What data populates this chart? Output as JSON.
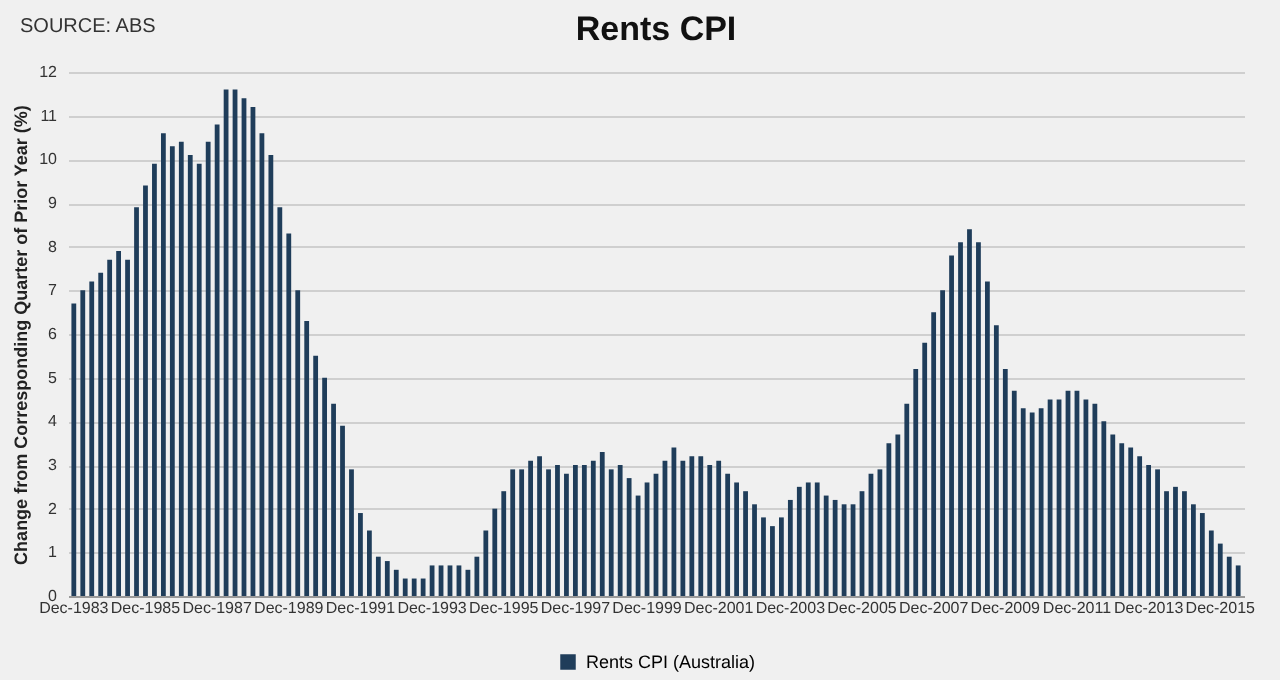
{
  "chart_data": {
    "type": "bar",
    "title": "Rents CPI",
    "ylabel": "Change from Corresponding Quarter of Prior Year (%)",
    "annotations": [
      "SOURCE: ABS"
    ],
    "categories": [
      "Dec-1983",
      null,
      null,
      null,
      null,
      null,
      null,
      null,
      "Dec-1985",
      null,
      null,
      null,
      null,
      null,
      null,
      null,
      "Dec-1987",
      null,
      null,
      null,
      null,
      null,
      null,
      null,
      "Dec-1989",
      null,
      null,
      null,
      null,
      null,
      null,
      null,
      "Dec-1991",
      null,
      null,
      null,
      null,
      null,
      null,
      null,
      "Dec-1993",
      null,
      null,
      null,
      null,
      null,
      null,
      null,
      "Dec-1995",
      null,
      null,
      null,
      null,
      null,
      null,
      null,
      "Dec-1997",
      null,
      null,
      null,
      null,
      null,
      null,
      null,
      "Dec-1999",
      null,
      null,
      null,
      null,
      null,
      null,
      null,
      "Dec-2001",
      null,
      null,
      null,
      null,
      null,
      null,
      null,
      "Dec-2003",
      null,
      null,
      null,
      null,
      null,
      null,
      null,
      "Dec-2005",
      null,
      null,
      null,
      null,
      null,
      null,
      null,
      "Dec-2007",
      null,
      null,
      null,
      null,
      null,
      null,
      null,
      "Dec-2009",
      null,
      null,
      null,
      null,
      null,
      null,
      null,
      "Dec-2011",
      null,
      null,
      null,
      null,
      null,
      null,
      null,
      "Dec-2013",
      null,
      null,
      null,
      null,
      null,
      null,
      null,
      "Dec-2015",
      null,
      null
    ],
    "series": [
      {
        "name": "Rents CPI (Australia)",
        "color": "#1f3d5a",
        "values": [
          6.7,
          7.0,
          7.2,
          7.4,
          7.7,
          7.9,
          7.7,
          8.9,
          9.4,
          9.9,
          10.6,
          10.3,
          10.4,
          10.1,
          9.9,
          10.4,
          10.8,
          11.6,
          11.6,
          11.4,
          11.2,
          10.6,
          10.1,
          8.9,
          8.3,
          7.0,
          6.3,
          5.5,
          5.0,
          4.4,
          3.9,
          2.9,
          1.9,
          1.5,
          0.9,
          0.8,
          0.6,
          0.4,
          0.4,
          0.4,
          0.7,
          0.7,
          0.7,
          0.7,
          0.6,
          0.9,
          1.5,
          2.0,
          2.4,
          2.9,
          2.9,
          3.1,
          3.2,
          2.9,
          3.0,
          2.8,
          3.0,
          3.0,
          3.1,
          3.3,
          2.9,
          3.0,
          2.7,
          2.3,
          2.6,
          2.8,
          3.1,
          3.4,
          3.1,
          3.2,
          3.2,
          3.0,
          3.1,
          2.8,
          2.6,
          2.4,
          2.1,
          1.8,
          1.6,
          1.8,
          2.2,
          2.5,
          2.6,
          2.6,
          2.3,
          2.2,
          2.1,
          2.1,
          2.4,
          2.8,
          2.9,
          3.5,
          3.7,
          4.4,
          5.2,
          5.8,
          6.5,
          7.0,
          7.8,
          8.1,
          8.4,
          8.1,
          7.2,
          6.2,
          5.2,
          4.7,
          4.3,
          4.2,
          4.3,
          4.5,
          4.5,
          4.7,
          4.7,
          4.5,
          4.4,
          4.0,
          3.7,
          3.5,
          3.4,
          3.2,
          3.0,
          2.9,
          2.4,
          2.5,
          2.4,
          2.1,
          1.9,
          1.5,
          1.2,
          0.9,
          0.7
        ]
      }
    ],
    "ylim": [
      0,
      12
    ],
    "yticks": [
      0,
      1,
      2,
      3,
      4,
      5,
      6,
      7,
      8,
      9,
      10,
      11,
      12
    ],
    "grid": "y",
    "legend": "bottom"
  }
}
